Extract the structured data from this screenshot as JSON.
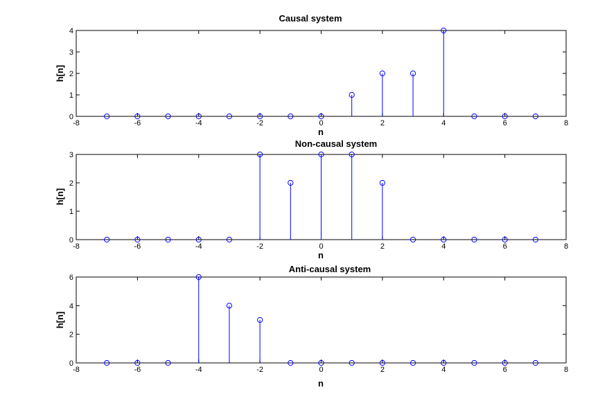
{
  "chart_data": [
    {
      "type": "stem",
      "title": "Causal system",
      "xlabel": "n",
      "ylabel": "h[n]",
      "xlim": [
        -8,
        8
      ],
      "ylim": [
        0,
        4
      ],
      "xticks": [
        -8,
        -6,
        -4,
        -2,
        0,
        2,
        4,
        6,
        8
      ],
      "yticks": [
        0,
        1,
        2,
        3,
        4
      ],
      "grid": false,
      "color": "#0000ff",
      "x": [
        -7,
        -6,
        -5,
        -4,
        -3,
        -2,
        -1,
        0,
        1,
        2,
        3,
        4,
        5,
        6,
        7
      ],
      "y": [
        0,
        0,
        0,
        0,
        0,
        0,
        0,
        0,
        1,
        2,
        2,
        4,
        0,
        0,
        0
      ]
    },
    {
      "type": "stem",
      "title": "Non-causal system",
      "xlabel": "n",
      "ylabel": "h[n]",
      "xlim": [
        -8,
        8
      ],
      "ylim": [
        0,
        3
      ],
      "xticks": [
        -8,
        -6,
        -4,
        -2,
        0,
        2,
        4,
        6,
        8
      ],
      "yticks": [
        0,
        1,
        2,
        3
      ],
      "grid": false,
      "color": "#0000ff",
      "x": [
        -7,
        -6,
        -5,
        -4,
        -3,
        -2,
        -1,
        0,
        1,
        2,
        3,
        4,
        5,
        6,
        7
      ],
      "y": [
        0,
        0,
        0,
        0,
        0,
        3,
        2,
        3,
        3,
        2,
        0,
        0,
        0,
        0,
        0
      ]
    },
    {
      "type": "stem",
      "title": "Anti-causal system",
      "xlabel": "n",
      "ylabel": "h[n]",
      "xlim": [
        -8,
        8
      ],
      "ylim": [
        0,
        6
      ],
      "xticks": [
        -8,
        -6,
        -4,
        -2,
        0,
        2,
        4,
        6,
        8
      ],
      "yticks": [
        0,
        2,
        4,
        6
      ],
      "grid": false,
      "color": "#0000ff",
      "x": [
        -7,
        -6,
        -5,
        -4,
        -3,
        -2,
        -1,
        0,
        1,
        2,
        3,
        4,
        5,
        6,
        7
      ],
      "y": [
        0,
        0,
        0,
        6,
        4,
        3,
        0,
        0,
        0,
        0,
        0,
        0,
        0,
        0,
        0
      ]
    }
  ]
}
